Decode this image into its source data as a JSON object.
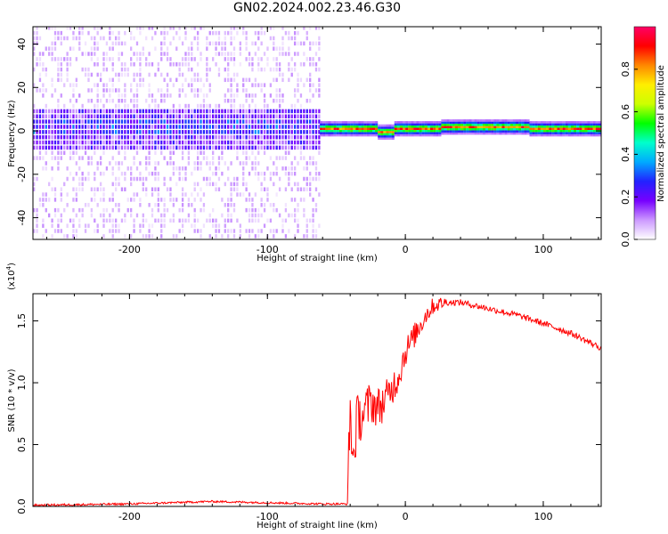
{
  "title": "GN02.2024.002.23.46.G30",
  "chart_data": [
    {
      "type": "heatmap",
      "xlabel": "Height of straight line (km)",
      "ylabel": "Frequency (Hz)",
      "xlim": [
        -270,
        142
      ],
      "ylim": [
        -50,
        48
      ],
      "xticks": [
        -200,
        -100,
        0,
        100
      ],
      "yticks": [
        -40,
        -20,
        0,
        20,
        40
      ],
      "colorbar": {
        "label": "Normalized spectral amplitude",
        "ticks": [
          "0.0",
          "0.2",
          "0.4",
          "0.6",
          "0.8"
        ],
        "range": [
          0,
          1
        ],
        "colors": [
          "#ffffff",
          "#cc99ff",
          "#7700ff",
          "#2222ff",
          "#00aaff",
          "#00ffcc",
          "#00ff00",
          "#ccff00",
          "#ffee00",
          "#ff8800",
          "#ff0000",
          "#ff0066"
        ]
      },
      "regions": [
        {
          "x": [
            -270,
            -62
          ],
          "description_values": {
            "center_freq": 0,
            "noise_band": [
              -10,
              8
            ],
            "scatter_range": [
              -50,
              48
            ]
          }
        },
        {
          "x": [
            -62,
            142
          ],
          "description_values": {
            "center_freq": 0.5,
            "dip_at_x": -15,
            "dip_freq": -1.5
          }
        }
      ]
    },
    {
      "type": "line",
      "xlabel": "Height of straight line (km)",
      "ylabel": "SNR (10 * v/v)",
      "yscale_label": "(x10",
      "yscale_exp": "4",
      "yscale_close": ")",
      "xlim": [
        -270,
        142
      ],
      "ylim": [
        0,
        1.72
      ],
      "xticks": [
        -200,
        -100,
        0,
        100
      ],
      "yticks": [
        "0.0",
        "0.5",
        "1.0",
        "1.5"
      ],
      "series": [
        {
          "color": "#ff0000",
          "x": [
            -270,
            -200,
            -140,
            -100,
            -60,
            -42,
            -40,
            -38,
            -35,
            -30,
            -25,
            -20,
            -15,
            -10,
            -5,
            0,
            5,
            10,
            15,
            20,
            25,
            30,
            40,
            60,
            80,
            100,
            120,
            142
          ],
          "y": [
            0.01,
            0.02,
            0.04,
            0.03,
            0.02,
            0.02,
            0.8,
            0.35,
            0.7,
            0.75,
            0.85,
            0.8,
            0.85,
            0.95,
            1.05,
            1.25,
            1.35,
            1.45,
            1.55,
            1.62,
            1.64,
            1.65,
            1.65,
            1.6,
            1.55,
            1.48,
            1.4,
            1.28
          ]
        }
      ]
    }
  ]
}
